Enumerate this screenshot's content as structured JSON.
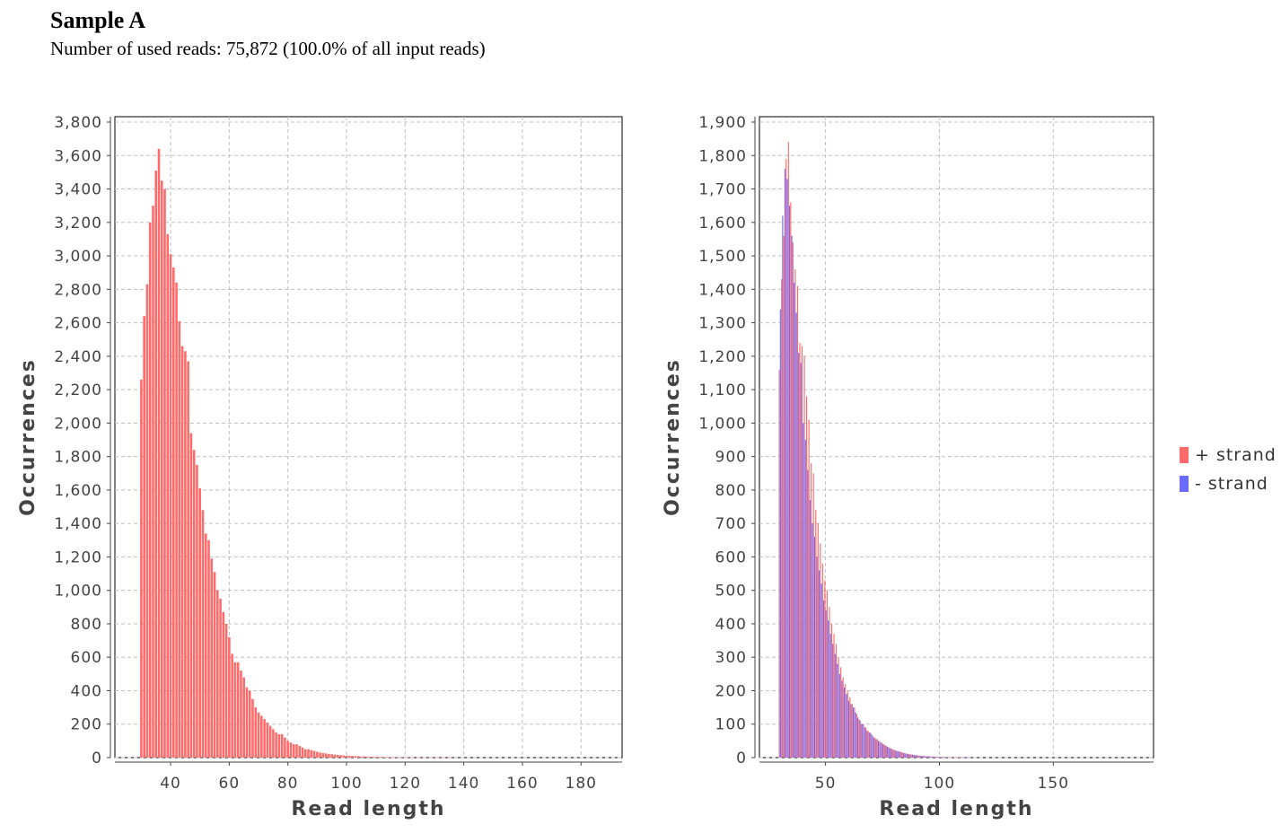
{
  "header": {
    "title": "Sample A",
    "subtitle": "Number of used reads: 75,872 (100.0% of all input reads)"
  },
  "colors": {
    "plus": "#ff6a6a",
    "minus": "#6a6aff",
    "grid": "#c0c0c0",
    "axis": "#444444"
  },
  "chart_data": [
    {
      "type": "bar",
      "xlabel": "Read length",
      "ylabel": "Occurrences",
      "xlim": [
        21,
        194
      ],
      "ylim": [
        0,
        3800
      ],
      "xticks": [
        40,
        60,
        80,
        100,
        120,
        140,
        160,
        180
      ],
      "xtick_labels": [
        "40",
        "60",
        "80",
        "100",
        "120",
        "140",
        "160",
        "180"
      ],
      "yticks": [
        0,
        200,
        400,
        600,
        800,
        1000,
        1200,
        1400,
        1600,
        1800,
        2000,
        2200,
        2400,
        2600,
        2800,
        3000,
        3200,
        3400,
        3600,
        3800
      ],
      "ytick_labels": [
        "0",
        "200",
        "400",
        "600",
        "800",
        "1,000",
        "1,200",
        "1,400",
        "1,600",
        "1,800",
        "2,000",
        "2,200",
        "2,400",
        "2,600",
        "2,800",
        "3,000",
        "3,200",
        "3,400",
        "3,600",
        "3,800"
      ],
      "grid": true,
      "x": [
        30,
        31,
        32,
        33,
        34,
        35,
        36,
        37,
        38,
        39,
        40,
        41,
        42,
        43,
        44,
        45,
        46,
        47,
        48,
        49,
        50,
        51,
        52,
        53,
        54,
        55,
        56,
        57,
        58,
        59,
        60,
        61,
        62,
        63,
        64,
        65,
        66,
        67,
        68,
        69,
        70,
        71,
        72,
        73,
        74,
        75,
        76,
        77,
        78,
        79,
        80,
        81,
        82,
        83,
        84,
        85,
        86,
        87,
        88,
        89,
        90,
        91,
        92,
        93,
        94,
        95,
        96,
        97,
        98,
        99,
        100,
        101,
        102,
        103,
        104,
        105,
        106,
        107,
        108,
        109,
        110,
        111,
        112,
        113,
        114,
        115,
        116,
        117,
        118,
        119,
        120,
        121,
        122,
        123,
        124,
        125,
        126,
        127,
        128,
        129,
        130,
        131,
        132,
        133,
        134,
        135,
        136,
        137,
        138,
        139,
        140,
        141,
        142,
        143,
        144,
        145,
        146,
        147,
        148,
        149,
        150
      ],
      "series": [
        {
          "color": "#ff6a6a",
          "values": [
            2260,
            2640,
            2830,
            3200,
            3300,
            3510,
            3640,
            3450,
            3400,
            3130,
            3010,
            2930,
            2840,
            2610,
            2460,
            2430,
            2370,
            1940,
            1840,
            1750,
            1610,
            1480,
            1340,
            1300,
            1190,
            1110,
            1000,
            950,
            870,
            800,
            720,
            620,
            570,
            570,
            520,
            480,
            420,
            400,
            350,
            300,
            270,
            250,
            230,
            210,
            190,
            170,
            150,
            140,
            140,
            120,
            100,
            90,
            80,
            80,
            70,
            60,
            50,
            50,
            45,
            40,
            35,
            30,
            28,
            25,
            22,
            20,
            18,
            16,
            15,
            13,
            12,
            11,
            10,
            9,
            8,
            7,
            7,
            6,
            5,
            5,
            4,
            4,
            4,
            3,
            3,
            3,
            2,
            2,
            2,
            2,
            2,
            2,
            2,
            1,
            1,
            1,
            1,
            1,
            1,
            1,
            1,
            1,
            1,
            1,
            1,
            1,
            1,
            1,
            0,
            0,
            0,
            0,
            0,
            0,
            0,
            0,
            0,
            0,
            0,
            0,
            0
          ]
        }
      ]
    },
    {
      "type": "bar",
      "xlabel": "Read length",
      "ylabel": "Occurrences",
      "xlim": [
        21,
        194
      ],
      "ylim": [
        0,
        1900
      ],
      "xticks": [
        50,
        100,
        150
      ],
      "xtick_labels": [
        "50",
        "100",
        "150"
      ],
      "yticks": [
        0,
        100,
        200,
        300,
        400,
        500,
        600,
        700,
        800,
        900,
        1000,
        1100,
        1200,
        1300,
        1400,
        1500,
        1600,
        1700,
        1800,
        1900
      ],
      "ytick_labels": [
        "0",
        "100",
        "200",
        "300",
        "400",
        "500",
        "600",
        "700",
        "800",
        "900",
        "1,000",
        "1,100",
        "1,200",
        "1,300",
        "1,400",
        "1,500",
        "1,600",
        "1,700",
        "1,800",
        "1,900"
      ],
      "grid": true,
      "legend_position": "right",
      "x": [
        30,
        31,
        32,
        33,
        34,
        35,
        36,
        37,
        38,
        39,
        40,
        41,
        42,
        43,
        44,
        45,
        46,
        47,
        48,
        49,
        50,
        51,
        52,
        53,
        54,
        55,
        56,
        57,
        58,
        59,
        60,
        61,
        62,
        63,
        64,
        65,
        66,
        67,
        68,
        69,
        70,
        71,
        72,
        73,
        74,
        75,
        76,
        77,
        78,
        79,
        80,
        81,
        82,
        83,
        84,
        85,
        86,
        87,
        88,
        89,
        90,
        91,
        92,
        93,
        94,
        95,
        96,
        97,
        98,
        99,
        100,
        101,
        102,
        103,
        104,
        105,
        106,
        107,
        108,
        109,
        110,
        111,
        112,
        113,
        114,
        115,
        116,
        117,
        118,
        119,
        120,
        121,
        122,
        123,
        124,
        125,
        126,
        127,
        128,
        129,
        130,
        131,
        132,
        133,
        134,
        135,
        136,
        137,
        138,
        139,
        140,
        141,
        142,
        143,
        144,
        145,
        146,
        147,
        148,
        149,
        150
      ],
      "series": [
        {
          "name": "+ strand",
          "color": "#ff6a6a",
          "values": [
            1160,
            1430,
            1560,
            1790,
            1840,
            1660,
            1540,
            1460,
            1410,
            1240,
            1230,
            1200,
            1080,
            1010,
            880,
            850,
            740,
            700,
            640,
            580,
            530,
            500,
            450,
            400,
            370,
            340,
            300,
            270,
            240,
            220,
            200,
            180,
            160,
            150,
            130,
            115,
            100,
            100,
            90,
            80,
            75,
            65,
            60,
            55,
            50,
            45,
            40,
            35,
            32,
            28,
            25,
            22,
            20,
            18,
            16,
            14,
            12,
            10,
            9,
            8,
            7,
            6,
            5,
            5,
            4,
            4,
            3,
            3,
            3,
            2,
            2,
            2,
            2,
            2,
            1,
            1,
            1,
            1,
            1,
            1,
            1,
            1,
            1,
            1,
            1,
            0,
            0,
            0,
            0,
            0,
            0,
            0,
            0,
            0,
            0,
            0,
            0,
            0,
            0,
            0,
            0,
            0,
            0,
            0,
            0,
            0,
            0,
            0,
            0,
            0,
            0,
            0,
            0,
            0,
            0,
            0,
            0,
            0,
            0,
            0,
            0
          ]
        },
        {
          "name": "- strand",
          "color": "#6a6aff",
          "values": [
            1340,
            1620,
            1760,
            1730,
            1650,
            1560,
            1420,
            1330,
            1210,
            1180,
            1000,
            950,
            860,
            770,
            700,
            660,
            600,
            560,
            520,
            470,
            440,
            410,
            370,
            340,
            310,
            280,
            250,
            230,
            210,
            190,
            170,
            160,
            150,
            135,
            120,
            110,
            100,
            90,
            80,
            75,
            70,
            60,
            55,
            50,
            45,
            40,
            36,
            32,
            28,
            25,
            22,
            20,
            18,
            16,
            14,
            12,
            11,
            10,
            9,
            8,
            7,
            6,
            5,
            5,
            4,
            4,
            3,
            3,
            2,
            2,
            2,
            2,
            2,
            1,
            1,
            1,
            1,
            1,
            1,
            1,
            1,
            1,
            1,
            1,
            0,
            0,
            0,
            0,
            0,
            0,
            0,
            0,
            0,
            0,
            0,
            0,
            0,
            0,
            0,
            0,
            0,
            0,
            0,
            0,
            0,
            0,
            0,
            0,
            0,
            0,
            0,
            0,
            0,
            0,
            0,
            0,
            0,
            0,
            0,
            0,
            0
          ]
        }
      ]
    }
  ]
}
